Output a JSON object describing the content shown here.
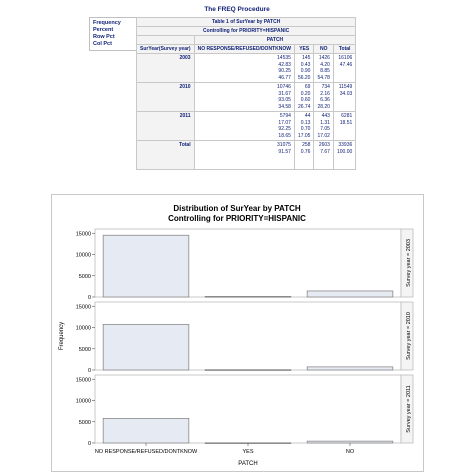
{
  "header": {
    "title": "The FREQ Procedure"
  },
  "legend": {
    "items": [
      "Frequency",
      "Percent",
      "Row Pct",
      "Col Pct"
    ]
  },
  "table": {
    "title": "Table 1 of SurYear by PATCH",
    "subtitle": "Controlling for PRIORITY=HISPANIC",
    "column_group": "PATCH",
    "row_header": "SurYear(Survey year)",
    "columns": [
      "NO RESPONSE/REFUSED/DONTKNOW",
      "YES",
      "NO",
      "Total"
    ],
    "rows": [
      {
        "label": "2003",
        "cells": [
          [
            "14535",
            "42.83",
            "90.25",
            "46.77"
          ],
          [
            "145",
            "0.43",
            "0.90",
            "56.20"
          ],
          [
            "1426",
            "4.20",
            "8.85",
            "54.78"
          ],
          [
            "16106",
            "47.46",
            "",
            ""
          ]
        ]
      },
      {
        "label": "2010",
        "cells": [
          [
            "10746",
            "31.67",
            "93.05",
            "34.58"
          ],
          [
            "69",
            "0.20",
            "0.60",
            "26.74"
          ],
          [
            "734",
            "2.16",
            "6.36",
            "28.20"
          ],
          [
            "11549",
            "34.03",
            "",
            ""
          ]
        ]
      },
      {
        "label": "2011",
        "cells": [
          [
            "5794",
            "17.07",
            "92.25",
            "18.65"
          ],
          [
            "44",
            "0.13",
            "0.70",
            "17.05"
          ],
          [
            "443",
            "1.31",
            "7.05",
            "17.02"
          ],
          [
            "6281",
            "18.51",
            "",
            ""
          ]
        ]
      },
      {
        "label": "Total",
        "cells": [
          [
            "31075",
            "91.57",
            "",
            ""
          ],
          [
            "258",
            "0.76",
            "",
            ""
          ],
          [
            "2603",
            "7.67",
            "",
            ""
          ],
          [
            "33936",
            "100.00",
            "",
            ""
          ]
        ]
      }
    ]
  },
  "chart_data": {
    "type": "bar",
    "title": "Distribution of SurYear by PATCH",
    "subtitle": "Controlling for PRIORITY=HISPANIC",
    "xlabel": "PATCH",
    "ylabel": "Frequency",
    "categories": [
      "NO RESPONSE/REFUSED/DONTKNOW",
      "YES",
      "NO"
    ],
    "yticks": [
      "0",
      "5000",
      "10000",
      "15000"
    ],
    "ylim": [
      0,
      16000
    ],
    "panels": [
      {
        "label": "Survey year = 2003",
        "values": [
          14535,
          145,
          1426
        ]
      },
      {
        "label": "Survey year = 2010",
        "values": [
          10746,
          69,
          734
        ]
      },
      {
        "label": "Survey year = 2011",
        "values": [
          5794,
          44,
          443
        ]
      }
    ],
    "colors": {
      "bar_fill": "#e6eaf2",
      "bar_stroke": "#7d7d7d",
      "frame": "#bcbcbc"
    }
  }
}
